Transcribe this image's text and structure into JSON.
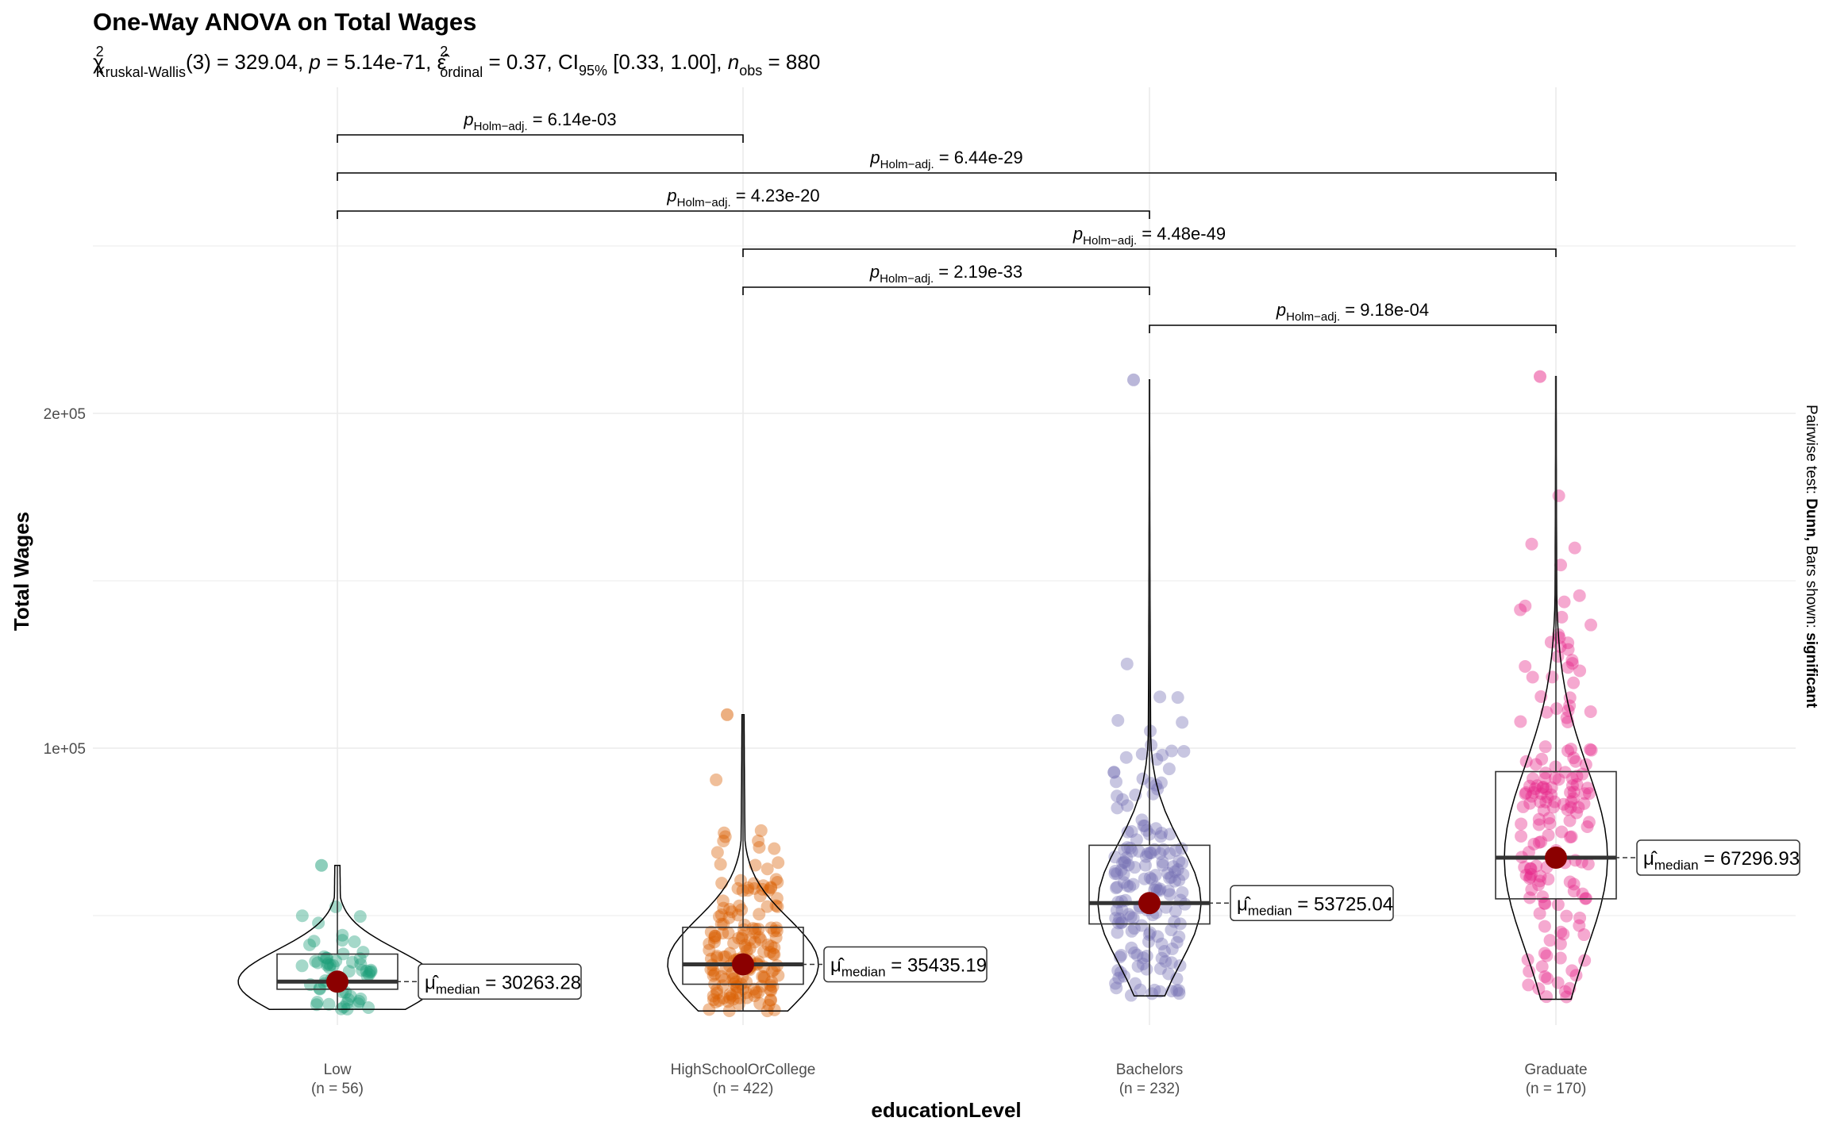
{
  "title": "One-Way ANOVA on Total Wages",
  "subtitle": {
    "chi_symbol": "χ",
    "chi_sup": "2",
    "chi_sub": "Kruskal-Wallis",
    "df": "(3) = 329.04, ",
    "p_symbol": "p",
    "p_value": " = 5.14e-71, ",
    "eps_symbol": "ε̂",
    "eps_sup": "2",
    "eps_sub": "ordinal",
    "eps_value": " = 0.37, CI",
    "ci_sub": "95%",
    "ci_value": " [0.33, 1.00], ",
    "n_symbol": "n",
    "n_sub": "obs",
    "n_value": " = 880"
  },
  "caption": {
    "prefix": "Pairwise test: ",
    "test": "Dunn,",
    "middle": " Bars shown: ",
    "shown": "significant"
  },
  "colors": {
    "Low": "#1b9e77",
    "HighSchoolOrCollege": "#d95f02",
    "Bachelors": "#7570b3",
    "Graduate": "#e7298a",
    "median_point": "#8b0000",
    "grid": "#ebebeb"
  },
  "chart_data": {
    "type": "box-violin",
    "title": "One-Way ANOVA on Total Wages",
    "xlabel": "educationLevel",
    "ylabel": "Total Wages",
    "ylim": [
      0,
      255000
    ],
    "yticks": [
      {
        "value": 100000,
        "label": "1e+05"
      },
      {
        "value": 200000,
        "label": "2e+05"
      }
    ],
    "grid": true,
    "groups": [
      {
        "name": "Low",
        "n_label": "(n = 56)",
        "n": 56,
        "q1": 28000,
        "median": 30263.28,
        "q3": 38500,
        "min": 22000,
        "max": 65000,
        "median_label": "30263.28"
      },
      {
        "name": "HighSchoolOrCollege",
        "n_label": "(n = 422)",
        "n": 422,
        "q1": 29500,
        "median": 35435.19,
        "q3": 46500,
        "min": 21500,
        "max": 110000,
        "median_label": "35435.19"
      },
      {
        "name": "Bachelors",
        "n_label": "(n = 232)",
        "n": 232,
        "q1": 47500,
        "median": 53725.04,
        "q3": 71000,
        "min": 26000,
        "max": 210000,
        "median_label": "53725.04"
      },
      {
        "name": "Graduate",
        "n_label": "(n = 170)",
        "n": 170,
        "q1": 55000,
        "median": 67296.93,
        "q3": 93000,
        "min": 25000,
        "max": 211000,
        "median_label": "67296.93"
      }
    ],
    "median_symbol": "μ̂",
    "median_sub": "median",
    "pairwise": [
      {
        "from": "Low",
        "to": "HighSchoolOrCollege",
        "p_sym": "p",
        "p_sub": "Holm−adj.",
        "p_value": "= 6.14e-03"
      },
      {
        "from": "Low",
        "to": "Graduate",
        "p_sym": "p",
        "p_sub": "Holm−adj.",
        "p_value": "= 6.44e-29"
      },
      {
        "from": "Low",
        "to": "Bachelors",
        "p_sym": "p",
        "p_sub": "Holm−adj.",
        "p_value": "= 4.23e-20"
      },
      {
        "from": "HighSchoolOrCollege",
        "to": "Graduate",
        "p_sym": "p",
        "p_sub": "Holm−adj.",
        "p_value": "= 4.48e-49"
      },
      {
        "from": "HighSchoolOrCollege",
        "to": "Bachelors",
        "p_sym": "p",
        "p_sub": "Holm−adj.",
        "p_value": "= 2.19e-33"
      },
      {
        "from": "Bachelors",
        "to": "Graduate",
        "p_sym": "p",
        "p_sub": "Holm−adj.",
        "p_value": "= 9.18e-04"
      }
    ]
  }
}
